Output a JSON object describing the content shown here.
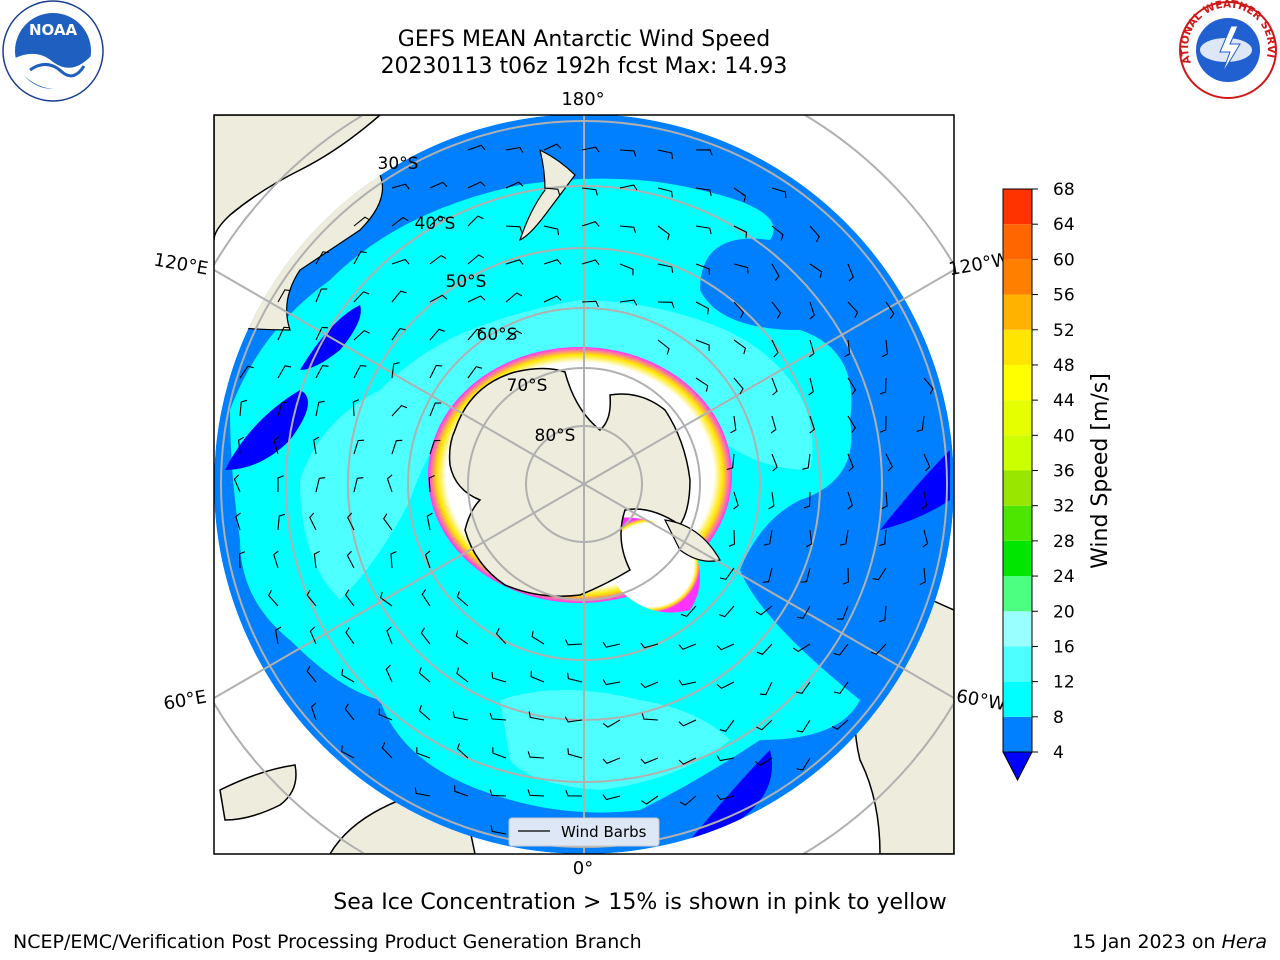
{
  "title": {
    "line1": "GEFS MEAN Antarctic Wind Speed",
    "line2": "20230113 t06z 192h fcst   Max: 14.93"
  },
  "map": {
    "projection": "South Polar Stereographic",
    "longitude_labels": [
      "180°",
      "120°E",
      "120°W",
      "60°E",
      "60°W",
      "0°"
    ],
    "latitude_labels": [
      "30°S",
      "40°S",
      "50°S",
      "60°S",
      "70°S",
      "80°S"
    ],
    "legend_label": "Wind Barbs",
    "colors": {
      "land": "#eeecdc",
      "ws_4_8": "#0080ff",
      "ws_8_12": "#00ffff",
      "ws_12_16": "#4dffff",
      "ws_below_4": "#0000ff",
      "sea_ice": "#ff33ff",
      "grid": "#b0b0b0"
    }
  },
  "colorbar": {
    "label": "Wind Speed [m/s]",
    "ticks": [
      "4",
      "8",
      "12",
      "16",
      "20",
      "24",
      "28",
      "32",
      "36",
      "40",
      "44",
      "48",
      "52",
      "56",
      "60",
      "64",
      "68"
    ],
    "colors": [
      "#0080ff",
      "#00ffff",
      "#4dffff",
      "#99ffff",
      "#4dff80",
      "#00e600",
      "#4de600",
      "#99e600",
      "#ccff00",
      "#e6ff00",
      "#ffff00",
      "#ffe600",
      "#ffb300",
      "#ff8000",
      "#ff6600",
      "#ff3300"
    ],
    "under_color": "#0000ff"
  },
  "caption": "Sea Ice Concentration > 15% is shown in pink to yellow",
  "footer": {
    "left": "NCEP/EMC/Verification Post Processing Product Generation Branch",
    "right_prefix": "15 Jan 2023 on ",
    "right_machine": "Hera"
  },
  "logos": {
    "noaa_text": "NOAA",
    "nws_text": "NATIONAL WEATHER SERVICE"
  }
}
